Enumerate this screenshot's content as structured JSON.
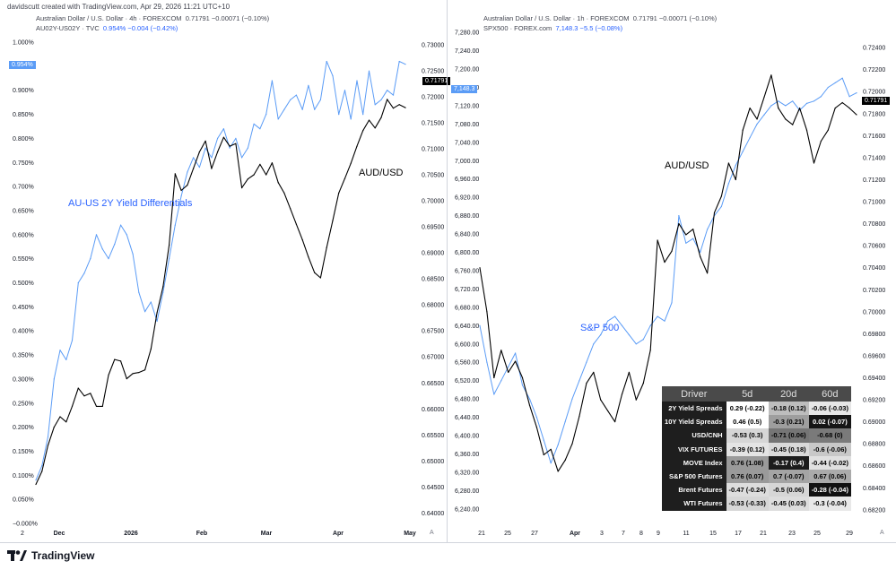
{
  "credit": "davidscutt created with TradingView.com, Apr 29, 2026 11:21 UTC+10",
  "left_panel": {
    "legend_main": "Australian Dollar / U.S. Dollar · 4h · FOREXCOM",
    "legend_main_values": "0.71791  −0.00071 (−0.10%)",
    "legend_series": "AU02Y-US02Y · TVC",
    "legend_series_values": "0.954%  −0.004 (−0.42%)",
    "annotation_blue": "AU-US 2Y Yield Differentials",
    "annotation_black": "AUD/USD",
    "badge_blue": "0.954%",
    "badge_black": "0.71791",
    "x_ticks": [
      "2",
      "Dec",
      "2026",
      "Feb",
      "Mar",
      "Apr",
      "May"
    ],
    "corner": "A"
  },
  "right_panel": {
    "legend_main": "Australian Dollar / U.S. Dollar · 1h · FOREXCOM",
    "legend_main_values": "0.71791  −0.00071 (−0.10%)",
    "legend_series": "SPX500 · FOREX.com",
    "legend_series_values": "7,148.3  −5.5 (−0.08%)",
    "annotation_blue": "S&P 500",
    "annotation_black": "AUD/USD",
    "badge_blue": "7,148.3",
    "badge_black": "0.71791",
    "x_ticks": [
      "21",
      "25",
      "27",
      "Apr",
      "3",
      "7",
      "8",
      "9",
      "11",
      "15",
      "17",
      "21",
      "23",
      "25",
      "29"
    ],
    "corner": "A"
  },
  "brand": "TradingView",
  "colors": {
    "audusd": "#000000",
    "overlay": "#5b9cf6",
    "badge_blue": "#5b9cf6"
  },
  "table": {
    "headers": [
      "Driver",
      "5d",
      "20d",
      "60d"
    ],
    "rows": [
      {
        "label": "2Y Yield Spreads",
        "v5": "0.29 (-0.22)",
        "v20": "-0.18 (0.12)",
        "v60": "-0.06 (-0.03)",
        "c5": "#ffffff",
        "c20": "#bdbdbd",
        "c60": "#e6e6e6"
      },
      {
        "label": "10Y Yield Spreads",
        "v5": "0.46 (0.5)",
        "v20": "-0.3 (0.21)",
        "v60": "0.02 (-0.07)",
        "c5": "#ffffff",
        "c20": "#9e9e9e",
        "c60": "#151515"
      },
      {
        "label": "USD/CNH",
        "v5": "-0.53 (0.3)",
        "v20": "-0.71 (0.06)",
        "v60": "-0.68 (0)",
        "c5": "#d6d6d6",
        "c20": "#757575",
        "c60": "#7a7a7a"
      },
      {
        "label": "VIX FUTURES",
        "v5": "-0.39 (0.12)",
        "v20": "-0.45 (0.18)",
        "v60": "-0.6 (-0.06)",
        "c5": "#e4e4e4",
        "c20": "#d9d9d9",
        "c60": "#c8c8c8"
      },
      {
        "label": "MOVE Index",
        "v5": "0.76 (1.08)",
        "v20": "-0.17 (0.4)",
        "v60": "-0.44 (-0.02)",
        "c5": "#9a9a9a",
        "c20": "#1c1c1c",
        "c60": "#e0e0e0"
      },
      {
        "label": "S&P 500 Futures",
        "v5": "0.76 (0.07)",
        "v20": "0.7 (-0.07)",
        "v60": "0.67 (0.06)",
        "c5": "#9a9a9a",
        "c20": "#a4a4a4",
        "c60": "#aaaaaa"
      },
      {
        "label": "Brent Futures",
        "v5": "-0.47 (-0.24)",
        "v20": "-0.5 (0.06)",
        "v60": "-0.28 (-0.04)",
        "c5": "#dddddd",
        "c20": "#d6d6d6",
        "c60": "#111111"
      },
      {
        "label": "WTI Futures",
        "v5": "-0.53 (-0.33)",
        "v20": "-0.45 (0.03)",
        "v60": "-0.3 (-0.04)",
        "c5": "#d6d6d6",
        "c20": "#dddddd",
        "c60": "#e8e8e8"
      }
    ]
  },
  "chart_data": [
    {
      "type": "line",
      "title": "Australian Dollar / U.S. Dollar · 4h · FOREXCOM",
      "x_ticks": [
        "2",
        "Dec",
        "2026",
        "Feb",
        "Mar",
        "Apr",
        "May"
      ],
      "y_left": {
        "label": "AU02Y-US02Y",
        "ticks": [
          "1.000%",
          "0.950%",
          "0.900%",
          "0.850%",
          "0.800%",
          "0.750%",
          "0.700%",
          "0.650%",
          "0.600%",
          "0.550%",
          "0.500%",
          "0.450%",
          "0.400%",
          "0.350%",
          "0.300%",
          "0.250%",
          "0.200%",
          "0.150%",
          "0.100%",
          "0.050%",
          "−0.000%"
        ],
        "ylim": [
          0.0,
          1.0
        ]
      },
      "y_right": {
        "label": "AUD/USD",
        "ticks": [
          "0.73000",
          "0.72500",
          "0.72000",
          "0.71500",
          "0.71000",
          "0.70500",
          "0.70000",
          "0.69500",
          "0.69000",
          "0.68500",
          "0.68000",
          "0.67500",
          "0.67000",
          "0.66500",
          "0.66000",
          "0.65500",
          "0.65000",
          "0.64500",
          "0.64000"
        ],
        "ylim": [
          0.638,
          0.7305
        ]
      },
      "series": [
        {
          "name": "AU02Y-US02Y",
          "axis": "left",
          "color": "#5b9cf6",
          "values": [
            0.09,
            0.12,
            0.18,
            0.3,
            0.36,
            0.34,
            0.38,
            0.5,
            0.52,
            0.55,
            0.6,
            0.57,
            0.55,
            0.58,
            0.62,
            0.6,
            0.56,
            0.48,
            0.44,
            0.46,
            0.42,
            0.48,
            0.55,
            0.62,
            0.68,
            0.73,
            0.76,
            0.74,
            0.78,
            0.76,
            0.8,
            0.82,
            0.78,
            0.8,
            0.76,
            0.78,
            0.83,
            0.82,
            0.85,
            0.92,
            0.84,
            0.86,
            0.88,
            0.89,
            0.86,
            0.91,
            0.86,
            0.88,
            0.96,
            0.93,
            0.85,
            0.9,
            0.84,
            0.92,
            0.85,
            0.94,
            0.87,
            0.88,
            0.9,
            0.89,
            0.96,
            0.954
          ]
        },
        {
          "name": "AUD/USD",
          "axis": "right",
          "color": "#000000",
          "values": [
            0.6455,
            0.648,
            0.653,
            0.6565,
            0.6585,
            0.6575,
            0.6605,
            0.664,
            0.6625,
            0.663,
            0.6605,
            0.6605,
            0.6665,
            0.6695,
            0.6692,
            0.6658,
            0.6668,
            0.667,
            0.6675,
            0.6715,
            0.6785,
            0.6835,
            0.6915,
            0.7052,
            0.702,
            0.703,
            0.7062,
            0.7094,
            0.7115,
            0.7062,
            0.7094,
            0.7122,
            0.7105,
            0.711,
            0.7025,
            0.7042,
            0.705,
            0.707,
            0.705,
            0.7073,
            0.7035,
            0.7015,
            0.6985,
            0.6955,
            0.6925,
            0.6892,
            0.6862,
            0.6852,
            0.691,
            0.6962,
            0.7015,
            0.7043,
            0.7072,
            0.7105,
            0.7135,
            0.7155,
            0.714,
            0.716,
            0.7195,
            0.7178,
            0.7185,
            0.7179
          ]
        }
      ],
      "annotations": [
        "AU-US 2Y Yield Differentials",
        "AUD/USD"
      ]
    },
    {
      "type": "line",
      "title": "Australian Dollar / U.S. Dollar · 1h · FOREXCOM",
      "x_ticks": [
        "21",
        "25",
        "27",
        "Apr",
        "3",
        "7",
        "8",
        "9",
        "11",
        "15",
        "17",
        "21",
        "23",
        "25",
        "29"
      ],
      "y_left": {
        "label": "SPX500",
        "ticks": [
          "7,280.00",
          "7,240.00",
          "7,200.00",
          "7,160.00",
          "7,120.00",
          "7,080.00",
          "7,040.00",
          "7,000.00",
          "6,960.00",
          "6,920.00",
          "6,880.00",
          "6,840.00",
          "6,800.00",
          "6,760.00",
          "6,720.00",
          "6,680.00",
          "6,640.00",
          "6,600.00",
          "6,560.00",
          "6,520.00",
          "6,480.00",
          "6,440.00",
          "6,400.00",
          "6,360.00",
          "6,320.00",
          "6,280.00",
          "6,240.00"
        ],
        "ylim": [
          6226,
          7290
        ]
      },
      "y_right": {
        "label": "AUD/USD",
        "ticks": [
          "0.72400",
          "0.72200",
          "0.72000",
          "0.71800",
          "0.71600",
          "0.71400",
          "0.71200",
          "0.71000",
          "0.70800",
          "0.70600",
          "0.70400",
          "0.70200",
          "0.70000",
          "0.69800",
          "0.69600",
          "0.69400",
          "0.69200",
          "0.69000",
          "0.68800",
          "0.68600",
          "0.68400",
          "0.68200"
        ],
        "ylim": [
          0.6815,
          0.7258
        ]
      },
      "series": [
        {
          "name": "SPX500",
          "axis": "left",
          "color": "#5b9cf6",
          "values": [
            6640,
            6560,
            6490,
            6520,
            6550,
            6580,
            6510,
            6480,
            6440,
            6390,
            6340,
            6380,
            6430,
            6480,
            6520,
            6560,
            6600,
            6620,
            6650,
            6660,
            6640,
            6620,
            6600,
            6610,
            6640,
            6660,
            6650,
            6690,
            6880,
            6820,
            6830,
            6800,
            6850,
            6880,
            6900,
            6950,
            6990,
            7020,
            7050,
            7080,
            7100,
            7120,
            7130,
            7120,
            7130,
            7110,
            7125,
            7130,
            7140,
            7160,
            7170,
            7180,
            7140,
            7148
          ]
        },
        {
          "name": "AUD/USD",
          "axis": "right",
          "color": "#000000",
          "values": [
            0.704,
            0.7,
            0.694,
            0.6965,
            0.6945,
            0.6955,
            0.694,
            0.6915,
            0.6895,
            0.687,
            0.6875,
            0.6855,
            0.6865,
            0.688,
            0.6905,
            0.6935,
            0.6945,
            0.692,
            0.691,
            0.69,
            0.6925,
            0.6945,
            0.692,
            0.6935,
            0.6965,
            0.7065,
            0.7045,
            0.7055,
            0.708,
            0.707,
            0.7075,
            0.705,
            0.7035,
            0.709,
            0.7105,
            0.7135,
            0.712,
            0.7165,
            0.7185,
            0.7175,
            0.7195,
            0.7215,
            0.7185,
            0.7175,
            0.717,
            0.7185,
            0.7165,
            0.7135,
            0.7155,
            0.7165,
            0.7185,
            0.719,
            0.7185,
            0.7179
          ]
        }
      ],
      "annotations": [
        "S&P 500",
        "AUD/USD"
      ]
    }
  ]
}
